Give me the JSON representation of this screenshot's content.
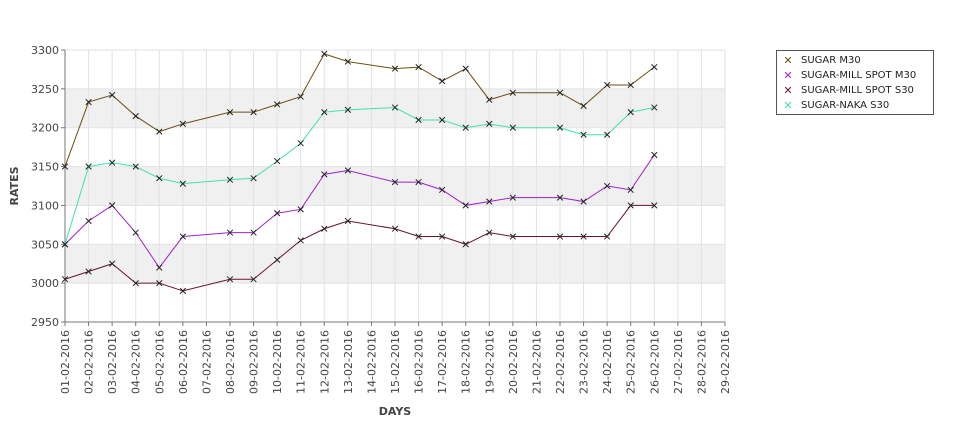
{
  "chart_data": {
    "type": "line",
    "title": "",
    "xlabel": "DAYS",
    "ylabel": "RATES",
    "ylim": [
      2950,
      3300
    ],
    "y_ticks": [
      2950,
      3000,
      3050,
      3100,
      3150,
      3200,
      3250,
      3300
    ],
    "grid": true,
    "legend_position": "top-right",
    "categories": [
      "01-02-2016",
      "02-02-2016",
      "03-02-2016",
      "04-02-2016",
      "05-02-2016",
      "06-02-2016",
      "07-02-2016",
      "08-02-2016",
      "09-02-2016",
      "10-02-2016",
      "11-02-2016",
      "12-02-2016",
      "13-02-2016",
      "14-02-2016",
      "15-02-2016",
      "16-02-2016",
      "17-02-2016",
      "18-02-2016",
      "19-02-2016",
      "20-02-2016",
      "21-02-2016",
      "22-02-2016",
      "23-02-2016",
      "24-02-2016",
      "25-02-2016",
      "26-02-2016",
      "27-02-2016",
      "28-02-2016",
      "29-02-2016"
    ],
    "series": [
      {
        "name": "SUGAR M30",
        "color": "#6b4f10",
        "values": [
          3150,
          3233,
          3242,
          3215,
          3195,
          3205,
          null,
          3220,
          3220,
          3230,
          3240,
          3295,
          3285,
          null,
          3276,
          3278,
          3260,
          3276,
          3236,
          3245,
          null,
          3245,
          3228,
          3255,
          3255,
          3278,
          null,
          null,
          null
        ]
      },
      {
        "name": "SUGAR-MILL SPOT M30",
        "color": "#a020d0",
        "values": [
          3050,
          3080,
          3100,
          3065,
          3020,
          3060,
          null,
          3065,
          3065,
          3090,
          3095,
          3140,
          3145,
          null,
          3130,
          3130,
          3120,
          3100,
          3105,
          3110,
          null,
          3110,
          3105,
          3125,
          3120,
          3165,
          null,
          null,
          null
        ]
      },
      {
        "name": "SUGAR-MILL SPOT S30",
        "color": "#6a1038",
        "values": [
          3005,
          3015,
          3025,
          3000,
          3000,
          2990,
          null,
          3005,
          3005,
          3030,
          3055,
          3070,
          3080,
          null,
          3070,
          3060,
          3060,
          3050,
          3065,
          3060,
          null,
          3060,
          3060,
          3060,
          3100,
          3100,
          null,
          null,
          null
        ]
      },
      {
        "name": "SUGAR-NAKA S30",
        "color": "#3fe0b0",
        "values": [
          3050,
          3150,
          3155,
          3150,
          3135,
          3128,
          null,
          3133,
          3135,
          3157,
          3180,
          3220,
          3223,
          null,
          3226,
          3210,
          3210,
          3200,
          3205,
          3200,
          null,
          3200,
          3191,
          3191,
          3220,
          3226,
          null,
          null,
          null
        ]
      }
    ]
  }
}
